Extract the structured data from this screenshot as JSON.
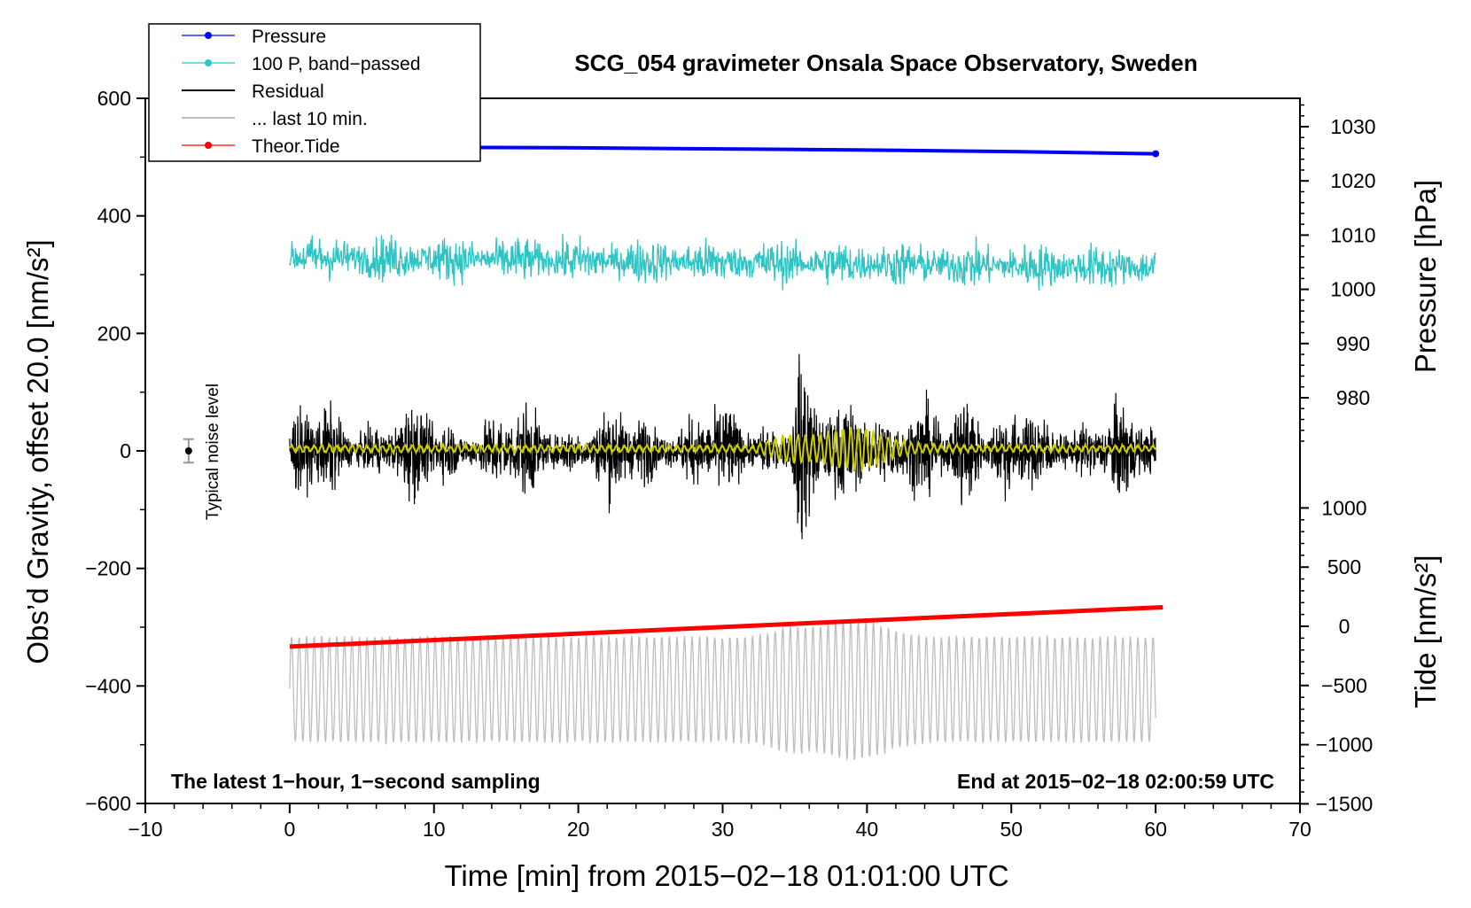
{
  "chart_data": {
    "type": "line",
    "title": "SCG_054 gravimeter Onsala Space Observatory, Sweden",
    "xlabel": "Time [min] from 2015−02−18 01:01:00 UTC",
    "ylabel_left": "Obs’d Gravity, offset 20.0 [nm/s²]",
    "ylabel_right_pressure": "Pressure [hPa]",
    "ylabel_right_tide": "Tide [nm/s²]",
    "xlim": [
      -10,
      70
    ],
    "ylim_left": [
      -600,
      600
    ],
    "ylim_pressure_display": [
      970,
      1035
    ],
    "ylim_tide_display": [
      -1500,
      1000
    ],
    "x_ticks": [
      "−10",
      "0",
      "10",
      "20",
      "30",
      "40",
      "50",
      "60",
      "70"
    ],
    "left_ticks": [
      "600",
      "400",
      "200",
      "0",
      "−200",
      "−400",
      "−600"
    ],
    "pressure_ticks": [
      "1030",
      "1020",
      "1010",
      "1000",
      "990",
      "980"
    ],
    "tide_ticks": [
      "1000",
      "500",
      "0",
      "−500",
      "−1000",
      "−1500"
    ],
    "annotation_left": "The latest 1−hour, 1−second sampling",
    "annotation_right": "End at 2015−02−18 02:00:59 UTC",
    "noise_label": "Typical noise level",
    "noise_bar": {
      "x": -7,
      "y": 0,
      "err": 20
    },
    "legend": [
      {
        "label": "Pressure",
        "color": "#0000ff",
        "marker": true
      },
      {
        "label": "100 P, band−passed",
        "color": "#2ec4c4",
        "marker": true
      },
      {
        "label": "Residual",
        "color": "#000000",
        "marker": false
      },
      {
        "label": "... last 10 min.",
        "color": "#bdbdbd",
        "marker": false
      },
      {
        "label": "Theor.Tide",
        "color": "#ff0000",
        "marker": true
      }
    ],
    "series": [
      {
        "name": "Pressure",
        "axis": "pressure",
        "color": "#0000ff",
        "x": [
          0,
          10,
          20,
          30,
          40,
          50,
          60
        ],
        "values": [
          1026.3,
          1026.2,
          1026.1,
          1025.9,
          1025.7,
          1025.4,
          1025.0
        ]
      },
      {
        "name": "100 P, band-passed",
        "axis": "left",
        "color": "#2ec4c4",
        "center": 310,
        "amplitude": 25
      },
      {
        "name": "Residual",
        "axis": "left",
        "color": "#000000",
        "center": 0,
        "amplitude": 80
      },
      {
        "name": "... last 10 min.",
        "axis": "left",
        "color": "#bdbdbd",
        "center": -410,
        "amplitude": 90
      },
      {
        "name": "Theor.Tide",
        "axis": "left",
        "color": "#ff0000",
        "x": [
          0,
          60.5
        ],
        "values": [
          -333,
          -266
        ]
      },
      {
        "name": "Filtered residual",
        "axis": "left",
        "color": "#cccc00",
        "center": 0,
        "amplitude": 5
      }
    ]
  }
}
